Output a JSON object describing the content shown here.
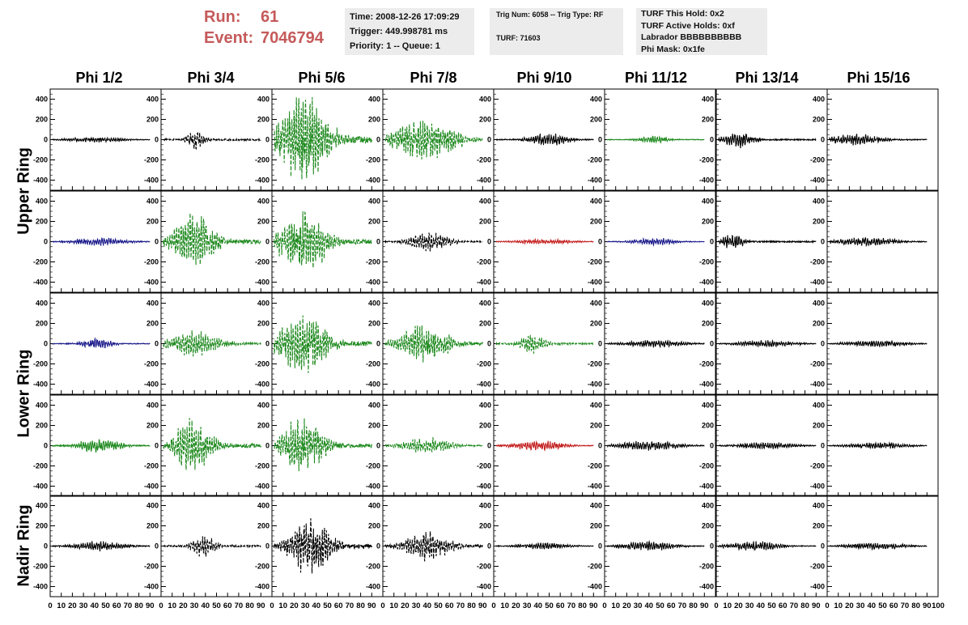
{
  "header": {
    "run_label": "Run:",
    "run_value": "61",
    "event_label": "Event:",
    "event_value": "7046794",
    "time": "Time: 2008-12-26 17:09:29",
    "trigger": "Trigger: 449.998781 ms",
    "priority": "Priority: 1 -- Queue: 1",
    "trig_num": "Trig Num: 6058 -- Trig Type: RF",
    "turf": "TURF: 71603",
    "turf_this_hold": "TURF This Hold: 0x2",
    "turf_active_holds": "TURF Active Holds: 0xf",
    "labrador": "Labrador BBBBBBBBBB",
    "phi_mask": "Phi Mask: 0x1fe"
  },
  "chart_data": {
    "type": "line",
    "title": "",
    "xlabel": "",
    "ylabel": "",
    "columns": [
      "Phi 1/2",
      "Phi 3/4",
      "Phi 5/6",
      "Phi 7/8",
      "Phi 9/10",
      "Phi 11/12",
      "Phi 13/14",
      "Phi 15/16"
    ],
    "ring_labels": [
      {
        "label": "Upper Ring",
        "rows": [
          0,
          1
        ]
      },
      {
        "label": "Lower Ring",
        "rows": [
          2,
          3
        ]
      },
      {
        "label": "Nadir Ring",
        "rows": [
          4
        ]
      }
    ],
    "xlim": [
      0,
      100
    ],
    "ylim": [
      -500,
      500
    ],
    "x_ticks": [
      0,
      10,
      20,
      30,
      40,
      50,
      60,
      70,
      80,
      90,
      100
    ],
    "y_ticks": [
      -400,
      -200,
      0,
      200,
      400
    ],
    "colors": {
      "black": "#000000",
      "green": "#1f8a1f",
      "blue": "#1c1c8c",
      "red": "#c41f1f"
    },
    "panels": [
      [
        {
          "color": "black",
          "center": 40,
          "amp": 30,
          "width": 30,
          "dashed": false
        },
        {
          "color": "black",
          "center": 32,
          "amp": 140,
          "width": 8,
          "dashed": true
        },
        {
          "color": "green",
          "center": 28,
          "amp": 500,
          "width": 25,
          "dashed": true
        },
        {
          "color": "green",
          "center": 38,
          "amp": 240,
          "width": 30,
          "dashed": true
        },
        {
          "color": "black",
          "center": 50,
          "amp": 70,
          "width": 20,
          "dashed": false
        },
        {
          "color": "green",
          "center": 45,
          "amp": 45,
          "width": 15,
          "dashed": false
        },
        {
          "color": "black",
          "center": 20,
          "amp": 90,
          "width": 15,
          "dashed": false
        },
        {
          "color": "black",
          "center": 25,
          "amp": 70,
          "width": 25,
          "dashed": false
        }
      ],
      [
        {
          "color": "blue",
          "center": 45,
          "amp": 50,
          "width": 25,
          "dashed": false
        },
        {
          "color": "green",
          "center": 30,
          "amp": 330,
          "width": 20,
          "dashed": true
        },
        {
          "color": "green",
          "center": 28,
          "amp": 380,
          "width": 22,
          "dashed": true
        },
        {
          "color": "black",
          "center": 42,
          "amp": 110,
          "width": 20,
          "dashed": true
        },
        {
          "color": "red",
          "center": 45,
          "amp": 30,
          "width": 30,
          "dashed": false
        },
        {
          "color": "blue",
          "center": 45,
          "amp": 45,
          "width": 20,
          "dashed": false
        },
        {
          "color": "black",
          "center": 15,
          "amp": 100,
          "width": 10,
          "dashed": false
        },
        {
          "color": "black",
          "center": 35,
          "amp": 50,
          "width": 30,
          "dashed": false
        }
      ],
      [
        {
          "color": "blue",
          "center": 42,
          "amp": 60,
          "width": 15,
          "dashed": false
        },
        {
          "color": "green",
          "center": 30,
          "amp": 150,
          "width": 25,
          "dashed": true
        },
        {
          "color": "green",
          "center": 28,
          "amp": 400,
          "width": 22,
          "dashed": true
        },
        {
          "color": "green",
          "center": 38,
          "amp": 210,
          "width": 25,
          "dashed": true
        },
        {
          "color": "green",
          "center": 35,
          "amp": 120,
          "width": 12,
          "dashed": true
        },
        {
          "color": "black",
          "center": 45,
          "amp": 45,
          "width": 30,
          "dashed": false
        },
        {
          "color": "black",
          "center": 45,
          "amp": 40,
          "width": 30,
          "dashed": false
        },
        {
          "color": "black",
          "center": 45,
          "amp": 40,
          "width": 30,
          "dashed": false
        }
      ],
      [
        {
          "color": "green",
          "center": 45,
          "amp": 90,
          "width": 20,
          "dashed": false
        },
        {
          "color": "green",
          "center": 28,
          "amp": 320,
          "width": 18,
          "dashed": true
        },
        {
          "color": "green",
          "center": 28,
          "amp": 330,
          "width": 20,
          "dashed": true
        },
        {
          "color": "green",
          "center": 40,
          "amp": 90,
          "width": 25,
          "dashed": true
        },
        {
          "color": "red",
          "center": 40,
          "amp": 60,
          "width": 25,
          "dashed": false
        },
        {
          "color": "black",
          "center": 40,
          "amp": 55,
          "width": 30,
          "dashed": false
        },
        {
          "color": "black",
          "center": 45,
          "amp": 40,
          "width": 30,
          "dashed": false
        },
        {
          "color": "black",
          "center": 45,
          "amp": 40,
          "width": 30,
          "dashed": false
        }
      ],
      [
        {
          "color": "black",
          "center": 45,
          "amp": 60,
          "width": 25,
          "dashed": false
        },
        {
          "color": "black",
          "center": 38,
          "amp": 120,
          "width": 12,
          "dashed": true
        },
        {
          "color": "black",
          "center": 35,
          "amp": 340,
          "width": 20,
          "dashed": true
        },
        {
          "color": "black",
          "center": 40,
          "amp": 180,
          "width": 22,
          "dashed": true
        },
        {
          "color": "black",
          "center": 45,
          "amp": 40,
          "width": 25,
          "dashed": false
        },
        {
          "color": "black",
          "center": 40,
          "amp": 60,
          "width": 25,
          "dashed": false
        },
        {
          "color": "black",
          "center": 35,
          "amp": 55,
          "width": 25,
          "dashed": false
        },
        {
          "color": "black",
          "center": 45,
          "amp": 40,
          "width": 30,
          "dashed": false
        }
      ]
    ]
  }
}
